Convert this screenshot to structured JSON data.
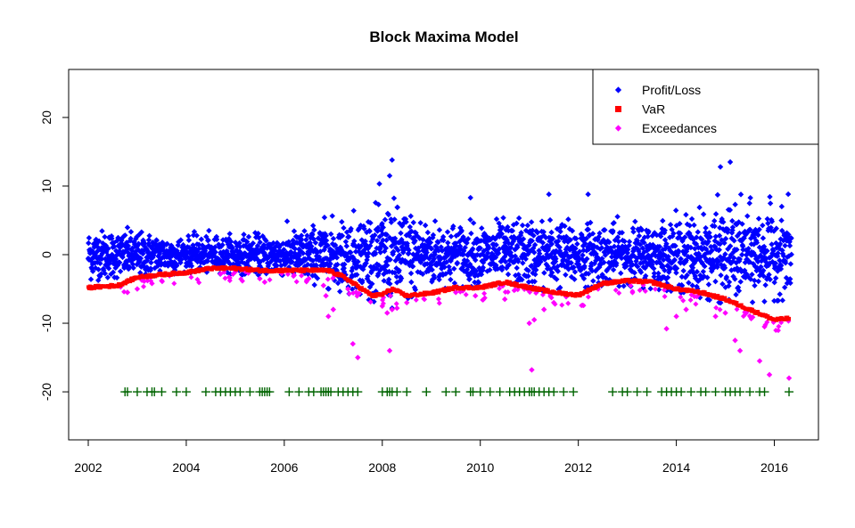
{
  "chart_data": {
    "type": "scatter",
    "title": "Block Maxima Model",
    "xlabel": "",
    "ylabel": "",
    "xlim": [
      2001.6,
      2016.9
    ],
    "ylim": [
      -27,
      27
    ],
    "x_ticks": [
      2002,
      2004,
      2006,
      2008,
      2010,
      2012,
      2014,
      2016
    ],
    "y_ticks": [
      -20,
      -10,
      0,
      10,
      20
    ],
    "legend_position": "top-right",
    "legend": [
      {
        "label": "Profit/Loss",
        "color": "#0000ff",
        "marker": "diamond"
      },
      {
        "label": "VaR",
        "color": "#ff0000",
        "marker": "square"
      },
      {
        "label": "Exceedances",
        "color": "#ff00ff",
        "marker": "diamond"
      }
    ],
    "series": [
      {
        "name": "Profit/Loss",
        "color": "#0000ff",
        "description_of_spread": "daily P/L scatter; amplitude by period",
        "amplitude": [
          [
            2002.0,
            3.2
          ],
          [
            2003.0,
            2.8
          ],
          [
            2004.0,
            2.2
          ],
          [
            2005.0,
            2.4
          ],
          [
            2006.0,
            2.6
          ],
          [
            2006.8,
            4.0
          ],
          [
            2007.5,
            5.0
          ],
          [
            2008.2,
            6.5
          ],
          [
            2009.0,
            4.2
          ],
          [
            2010.0,
            3.8
          ],
          [
            2011.0,
            4.5
          ],
          [
            2012.0,
            4.0
          ],
          [
            2013.0,
            3.8
          ],
          [
            2014.0,
            4.5
          ],
          [
            2015.0,
            6.0
          ],
          [
            2016.3,
            5.5
          ]
        ],
        "highlights": [
          [
            2008.2,
            13.8
          ],
          [
            2008.15,
            11.5
          ],
          [
            2015.1,
            13.5
          ],
          [
            2014.9,
            12.8
          ],
          [
            2011.4,
            8.8
          ],
          [
            2012.2,
            8.8
          ],
          [
            2009.8,
            8.3
          ]
        ]
      },
      {
        "name": "VaR",
        "color": "#ff0000",
        "x": [
          2002.0,
          2002.6,
          2003.0,
          2003.5,
          2004.0,
          2004.5,
          2005.0,
          2005.5,
          2006.0,
          2006.5,
          2006.9,
          2007.2,
          2007.5,
          2007.8,
          2008.0,
          2008.2,
          2008.5,
          2009.0,
          2009.5,
          2010.0,
          2010.5,
          2011.0,
          2011.5,
          2012.0,
          2012.5,
          2013.0,
          2013.5,
          2014.0,
          2014.5,
          2015.0,
          2015.5,
          2016.0,
          2016.3
        ],
        "values": [
          -4.8,
          -4.5,
          -3.3,
          -2.9,
          -2.6,
          -2.0,
          -2.0,
          -2.3,
          -2.3,
          -2.3,
          -2.3,
          -3.2,
          -4.6,
          -6.0,
          -5.8,
          -5.0,
          -6.0,
          -5.6,
          -4.8,
          -4.8,
          -4.0,
          -4.8,
          -5.5,
          -5.9,
          -4.2,
          -3.8,
          -4.0,
          -5.0,
          -5.5,
          -6.5,
          -8.0,
          -9.5,
          -9.3
        ]
      },
      {
        "name": "Exceedances",
        "color": "#ff00ff",
        "x": [
          2002.8,
          2003.0,
          2003.3,
          2003.5,
          2004.7,
          2005.0,
          2005.5,
          2005.6,
          2006.2,
          2006.5,
          2006.8,
          2006.85,
          2006.9,
          2007.0,
          2007.3,
          2007.4,
          2007.5,
          2008.0,
          2008.1,
          2008.15,
          2008.2,
          2008.3,
          2008.5,
          2009.5,
          2009.9,
          2010.5,
          2011.0,
          2011.05,
          2011.1,
          2011.3,
          2011.5,
          2013.8,
          2014.0,
          2014.2,
          2014.8,
          2015.0,
          2015.2,
          2015.3,
          2015.7,
          2015.8,
          2015.9,
          2016.3
        ],
        "values": [
          -5.5,
          -5.0,
          -4.2,
          -3.8,
          -2.8,
          -2.5,
          -3.5,
          -4.0,
          -3.0,
          -3.5,
          -4.5,
          -6.0,
          -9.0,
          -8.0,
          -5.0,
          -13.0,
          -15.0,
          -7.5,
          -8.5,
          -14.0,
          -8.0,
          -7.8,
          -7.0,
          -5.5,
          -6.0,
          -6.5,
          -10.0,
          -16.8,
          -9.5,
          -8.0,
          -7.0,
          -10.8,
          -9.0,
          -8.0,
          -9.0,
          -8.5,
          -12.5,
          -14.0,
          -15.5,
          -10.5,
          -17.5,
          -18.0
        ]
      }
    ],
    "rug": {
      "y": -20,
      "color": "#006400",
      "marker": "plus",
      "x": [
        2002.75,
        2002.8,
        2003.0,
        2003.2,
        2003.3,
        2003.35,
        2003.5,
        2003.8,
        2004.0,
        2004.4,
        2004.6,
        2004.7,
        2004.8,
        2004.9,
        2005.0,
        2005.1,
        2005.3,
        2005.5,
        2005.55,
        2005.6,
        2005.65,
        2005.7,
        2006.1,
        2006.3,
        2006.5,
        2006.6,
        2006.75,
        2006.8,
        2006.85,
        2006.9,
        2006.95,
        2007.1,
        2007.2,
        2007.3,
        2007.4,
        2007.5,
        2008.0,
        2008.1,
        2008.15,
        2008.2,
        2008.3,
        2008.5,
        2008.9,
        2009.3,
        2009.5,
        2009.8,
        2009.85,
        2010.0,
        2010.2,
        2010.4,
        2010.6,
        2010.7,
        2010.8,
        2010.9,
        2011.0,
        2011.05,
        2011.1,
        2011.2,
        2011.3,
        2011.4,
        2011.5,
        2011.7,
        2011.9,
        2012.7,
        2012.9,
        2013.0,
        2013.2,
        2013.4,
        2013.7,
        2013.8,
        2013.9,
        2014.0,
        2014.1,
        2014.3,
        2014.5,
        2014.6,
        2014.8,
        2015.0,
        2015.1,
        2015.2,
        2015.3,
        2015.5,
        2015.7,
        2015.8,
        2016.3
      ]
    }
  }
}
